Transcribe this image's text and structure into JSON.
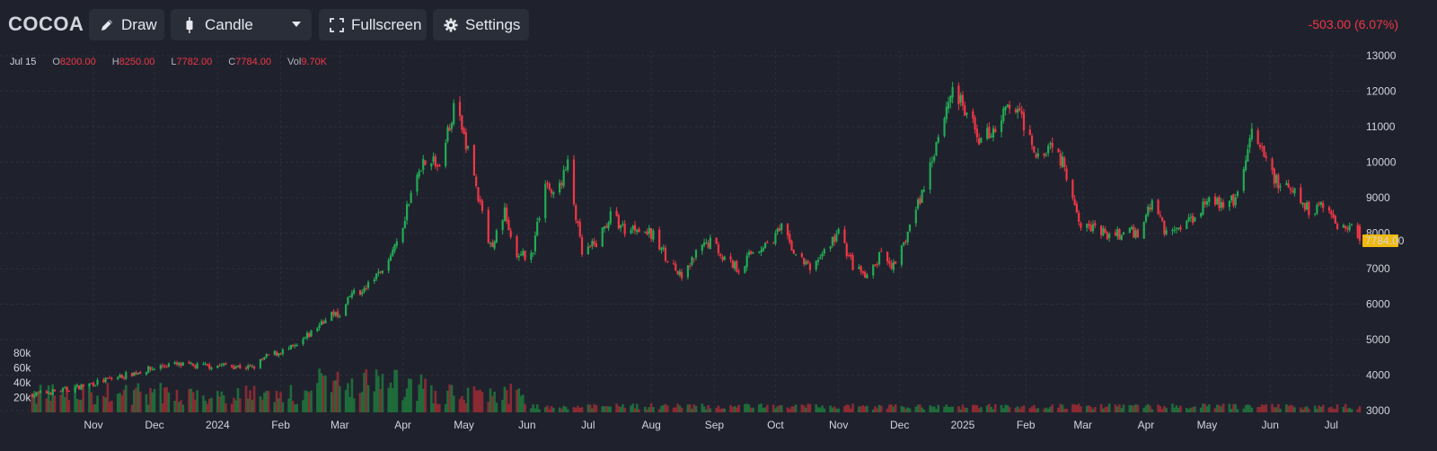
{
  "toolbar": {
    "symbol": "COCOA",
    "draw_label": "Draw",
    "candle_label": "Candle",
    "fullscreen_label": "Fullscreen",
    "settings_label": "Settings",
    "change_text": "-503.00 (6.07%)"
  },
  "legend": {
    "date": "Jul 15",
    "o_label": "O",
    "o_value": "8200.00",
    "h_label": "H",
    "h_value": "8250.00",
    "l_label": "L",
    "l_value": "7782.00",
    "c_label": "C",
    "c_value": "7784.00",
    "vol_label": "Vol",
    "vol_value": "9.70K"
  },
  "colors": {
    "background": "#1f222d",
    "up": "#22ab54",
    "down": "#f23645",
    "grid": "#2b2f3b",
    "last_price_tag": "#f0b90b"
  },
  "chart_data": {
    "type": "candlestick",
    "title": "COCOA",
    "x_labels": [
      "Nov",
      "Dec",
      "2024",
      "Feb",
      "Mar",
      "Apr",
      "May",
      "Jun",
      "Jul",
      "Aug",
      "Sep",
      "Oct",
      "Nov",
      "Dec",
      "2025",
      "Feb",
      "Mar",
      "Apr",
      "May",
      "Jun",
      "Jul"
    ],
    "y_ticks": [
      "13000",
      "12000",
      "11000",
      "10000",
      "9000",
      "8000",
      "7000",
      "6000",
      "5000",
      "4000",
      "3000"
    ],
    "ylim": [
      3000,
      13000
    ],
    "volume_ticks": [
      "80k",
      "60k",
      "40k",
      "20k"
    ],
    "last_price": "7784.00",
    "grid": true,
    "close_path": [
      [
        "2023-10-02",
        3450
      ],
      [
        "2023-10-20",
        3600
      ],
      [
        "2023-11-10",
        3900
      ],
      [
        "2023-11-24",
        4100
      ],
      [
        "2023-12-08",
        4300
      ],
      [
        "2023-12-22",
        4250
      ],
      [
        "2024-01-05",
        4280
      ],
      [
        "2024-01-18",
        4200
      ],
      [
        "2024-01-26",
        4550
      ],
      [
        "2024-02-09",
        4800
      ],
      [
        "2024-02-23",
        5600
      ],
      [
        "2024-03-01",
        5750
      ],
      [
        "2024-03-08",
        6300
      ],
      [
        "2024-03-15",
        6500
      ],
      [
        "2024-03-22",
        7000
      ],
      [
        "2024-04-01",
        8300
      ],
      [
        "2024-04-10",
        9900
      ],
      [
        "2024-04-15",
        10100
      ],
      [
        "2024-04-19",
        9800
      ],
      [
        "2024-04-26",
        11600
      ],
      [
        "2024-05-03",
        10400
      ],
      [
        "2024-05-08",
        9000
      ],
      [
        "2024-05-14",
        7600
      ],
      [
        "2024-05-21",
        8600
      ],
      [
        "2024-05-27",
        7200
      ],
      [
        "2024-06-04",
        7600
      ],
      [
        "2024-06-10",
        9500
      ],
      [
        "2024-06-14",
        9000
      ],
      [
        "2024-06-21",
        9900
      ],
      [
        "2024-06-28",
        7400
      ],
      [
        "2024-07-05",
        7700
      ],
      [
        "2024-07-12",
        8500
      ],
      [
        "2024-07-19",
        8100
      ],
      [
        "2024-07-26",
        8200
      ],
      [
        "2024-08-02",
        7900
      ],
      [
        "2024-08-09",
        7300
      ],
      [
        "2024-08-16",
        6700
      ],
      [
        "2024-08-23",
        7400
      ],
      [
        "2024-08-30",
        7800
      ],
      [
        "2024-09-06",
        7300
      ],
      [
        "2024-09-13",
        7000
      ],
      [
        "2024-09-20",
        7500
      ],
      [
        "2024-09-27",
        7700
      ],
      [
        "2024-10-04",
        8100
      ],
      [
        "2024-10-11",
        7400
      ],
      [
        "2024-10-18",
        7000
      ],
      [
        "2024-10-25",
        7500
      ],
      [
        "2024-11-01",
        8000
      ],
      [
        "2024-11-08",
        7100
      ],
      [
        "2024-11-15",
        6700
      ],
      [
        "2024-11-22",
        7400
      ],
      [
        "2024-11-29",
        7000
      ],
      [
        "2024-12-06",
        8200
      ],
      [
        "2024-12-13",
        9300
      ],
      [
        "2024-12-20",
        10800
      ],
      [
        "2024-12-27",
        12100
      ],
      [
        "2025-01-03",
        11300
      ],
      [
        "2025-01-10",
        10600
      ],
      [
        "2025-01-17",
        11000
      ],
      [
        "2025-01-24",
        11600
      ],
      [
        "2025-01-31",
        11100
      ],
      [
        "2025-02-07",
        10200
      ],
      [
        "2025-02-14",
        10600
      ],
      [
        "2025-02-21",
        9700
      ],
      [
        "2025-02-28",
        8300
      ],
      [
        "2025-03-07",
        8100
      ],
      [
        "2025-03-14",
        7900
      ],
      [
        "2025-03-21",
        8000
      ],
      [
        "2025-03-28",
        8000
      ],
      [
        "2025-04-04",
        8900
      ],
      [
        "2025-04-11",
        8000
      ],
      [
        "2025-04-18",
        8200
      ],
      [
        "2025-04-25",
        8500
      ],
      [
        "2025-05-02",
        9100
      ],
      [
        "2025-05-09",
        8700
      ],
      [
        "2025-05-16",
        9000
      ],
      [
        "2025-05-23",
        10800
      ],
      [
        "2025-05-30",
        10000
      ],
      [
        "2025-06-06",
        9300
      ],
      [
        "2025-06-13",
        9100
      ],
      [
        "2025-06-20",
        8600
      ],
      [
        "2025-06-27",
        8900
      ],
      [
        "2025-07-04",
        8200
      ],
      [
        "2025-07-11",
        8300
      ],
      [
        "2025-07-15",
        7784
      ]
    ]
  }
}
